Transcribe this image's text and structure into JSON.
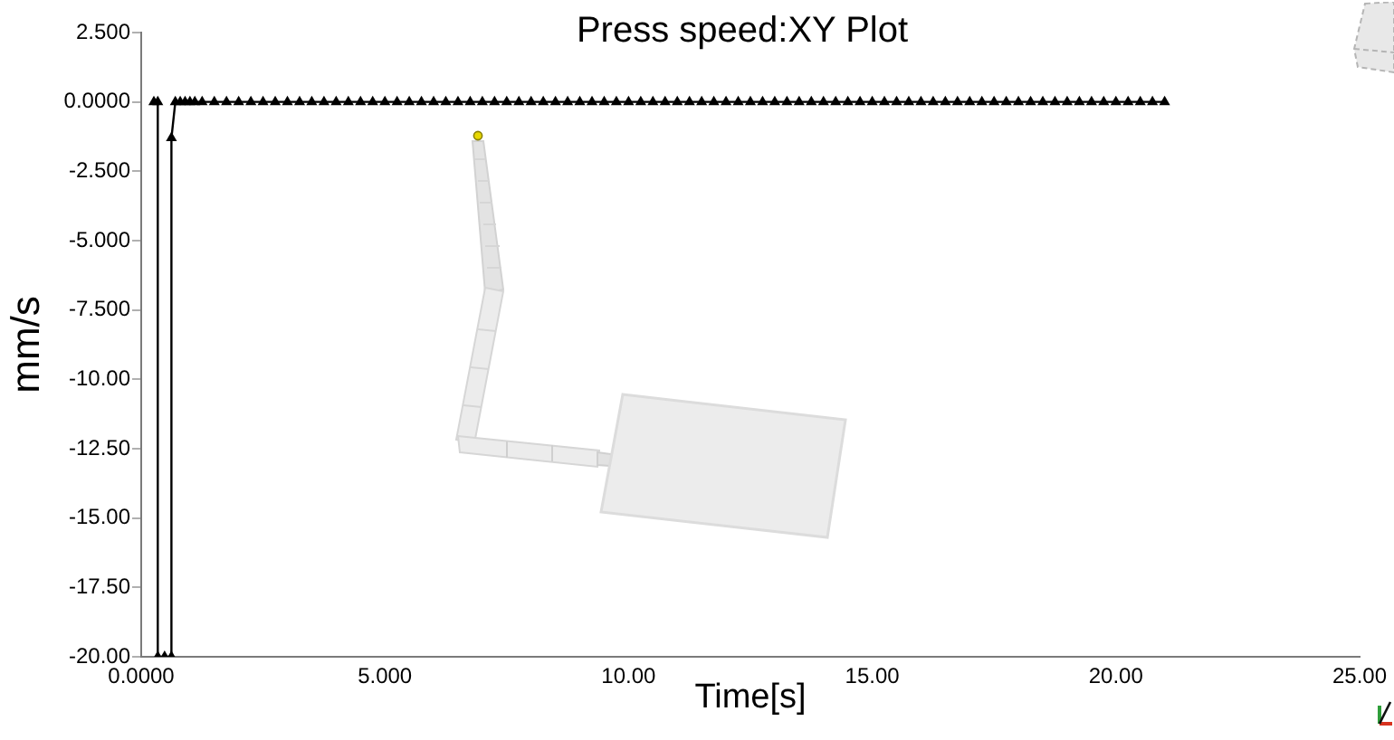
{
  "chart_data": {
    "type": "line",
    "title": "Press speed:XY Plot",
    "xlabel": "Time[s]",
    "ylabel": "mm/s",
    "x": [
      0.26,
      0.34,
      0.34,
      0.48,
      0.62,
      0.62,
      0.7,
      0.8,
      0.9,
      1.0,
      1.1,
      1.25,
      1.5,
      1.75,
      2.0,
      2.25,
      2.5,
      2.75,
      3.0,
      3.25,
      3.5,
      3.75,
      4.0,
      4.25,
      4.5,
      4.75,
      5.0,
      5.25,
      5.5,
      5.75,
      6.0,
      6.25,
      6.5,
      6.75,
      7.0,
      7.25,
      7.5,
      7.75,
      8.0,
      8.25,
      8.5,
      8.75,
      9.0,
      9.25,
      9.5,
      9.75,
      10.0,
      10.25,
      10.5,
      10.75,
      11.0,
      11.25,
      11.5,
      11.75,
      12.0,
      12.25,
      12.5,
      12.75,
      13.0,
      13.25,
      13.5,
      13.75,
      14.0,
      14.25,
      14.5,
      14.75,
      15.0,
      15.25,
      15.5,
      15.75,
      16.0,
      16.25,
      16.5,
      16.75,
      17.0,
      17.25,
      17.5,
      17.75,
      18.0,
      18.25,
      18.5,
      18.75,
      19.0,
      19.25,
      19.5,
      19.75,
      20.0,
      20.25,
      20.5,
      20.75,
      21.0
    ],
    "values": [
      0,
      0,
      -20,
      -20,
      -20,
      -1.3,
      0,
      0,
      0,
      0,
      0,
      0,
      0,
      0,
      0,
      0,
      0,
      0,
      0,
      0,
      0,
      0,
      0,
      0,
      0,
      0,
      0,
      0,
      0,
      0,
      0,
      0,
      0,
      0,
      0,
      0,
      0,
      0,
      0,
      0,
      0,
      0,
      0,
      0,
      0,
      0,
      0,
      0,
      0,
      0,
      0,
      0,
      0,
      0,
      0,
      0,
      0,
      0,
      0,
      0,
      0,
      0,
      0,
      0,
      0,
      0,
      0,
      0,
      0,
      0,
      0,
      0,
      0,
      0,
      0,
      0,
      0,
      0,
      0,
      0,
      0,
      0,
      0,
      0,
      0,
      0,
      0,
      0,
      0,
      0,
      0
    ],
    "color": "#000000",
    "marker": "triangle",
    "line_style": "solid",
    "xlim": [
      0,
      25
    ],
    "xticks": [
      {
        "value": 0,
        "label": "0.0000"
      },
      {
        "value": 5,
        "label": "5.000"
      },
      {
        "value": 10,
        "label": "10.00"
      },
      {
        "value": 15,
        "label": "15.00"
      },
      {
        "value": 20,
        "label": "20.00"
      },
      {
        "value": 25,
        "label": "25.00"
      }
    ],
    "ylim": [
      -20,
      2.5
    ],
    "yticks": [
      {
        "value": 2.5,
        "label": "2.500"
      },
      {
        "value": 0,
        "label": "0.0000"
      },
      {
        "value": -2.5,
        "label": "-2.500"
      },
      {
        "value": -5,
        "label": "-5.000"
      },
      {
        "value": -7.5,
        "label": "-7.500"
      },
      {
        "value": -10,
        "label": "-10.00"
      },
      {
        "value": -12.5,
        "label": "-12.50"
      },
      {
        "value": -15,
        "label": "-15.00"
      },
      {
        "value": -17.5,
        "label": "-17.50"
      },
      {
        "value": -20,
        "label": "-20.00"
      }
    ],
    "grid": false,
    "legend": false
  }
}
